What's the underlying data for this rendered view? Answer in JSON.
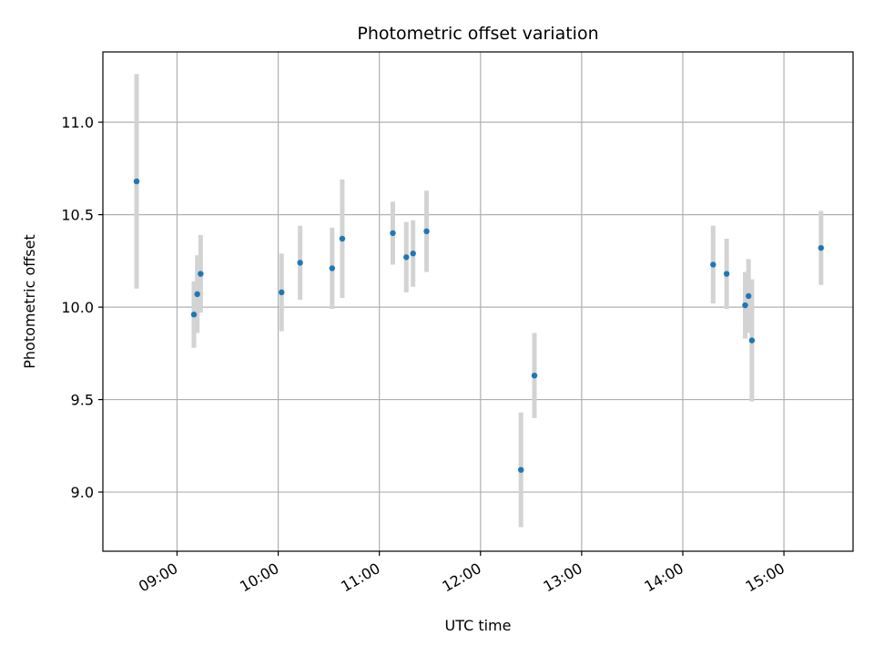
{
  "chart_data": {
    "type": "scatter",
    "title": "Photometric offset variation",
    "xlabel": "UTC time",
    "ylabel": "Photometric offset",
    "x_tick_labels": [
      "09:00",
      "10:00",
      "11:00",
      "12:00",
      "13:00",
      "14:00",
      "15:00"
    ],
    "y_tick_labels": [
      "9.0",
      "9.5",
      "10.0",
      "10.5",
      "11.0"
    ],
    "y_ticks": [
      9.0,
      9.5,
      10.0,
      10.5,
      11.0
    ],
    "xlim": [
      "08:16",
      "15:41"
    ],
    "ylim": [
      8.68,
      11.38
    ],
    "grid": true,
    "marker_color": "#1f77b4",
    "errorbar_color": "#d3d3d3",
    "points": [
      {
        "t": "08:36",
        "y": 10.68,
        "err": 0.58
      },
      {
        "t": "09:10",
        "y": 9.96,
        "err": 0.18
      },
      {
        "t": "09:12",
        "y": 10.07,
        "err": 0.21
      },
      {
        "t": "09:14",
        "y": 10.18,
        "err": 0.21
      },
      {
        "t": "10:02",
        "y": 10.08,
        "err": 0.21
      },
      {
        "t": "10:13",
        "y": 10.24,
        "err": 0.2
      },
      {
        "t": "10:32",
        "y": 10.21,
        "err": 0.22
      },
      {
        "t": "10:38",
        "y": 10.37,
        "err": 0.32
      },
      {
        "t": "11:08",
        "y": 10.4,
        "err": 0.17
      },
      {
        "t": "11:16",
        "y": 10.27,
        "err": 0.19
      },
      {
        "t": "11:20",
        "y": 10.29,
        "err": 0.18
      },
      {
        "t": "11:28",
        "y": 10.41,
        "err": 0.22
      },
      {
        "t": "12:24",
        "y": 9.12,
        "err": 0.31
      },
      {
        "t": "12:32",
        "y": 9.63,
        "err": 0.23
      },
      {
        "t": "14:18",
        "y": 10.23,
        "err": 0.21
      },
      {
        "t": "14:26",
        "y": 10.18,
        "err": 0.19
      },
      {
        "t": "14:37",
        "y": 10.01,
        "err": 0.18
      },
      {
        "t": "14:39",
        "y": 10.06,
        "err": 0.2
      },
      {
        "t": "14:41",
        "y": 9.82,
        "err": 0.33
      },
      {
        "t": "15:22",
        "y": 10.32,
        "err": 0.2
      }
    ]
  }
}
